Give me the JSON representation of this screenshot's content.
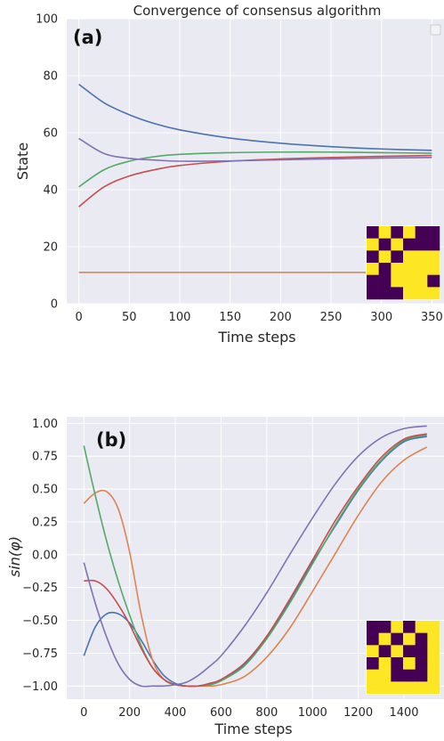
{
  "colors": {
    "background": "#eaeaf2",
    "grid": "#ffffff",
    "series": [
      "#4c72b0",
      "#dd8452",
      "#55a868",
      "#c44e52",
      "#8172b3"
    ],
    "matrix_on": "#fde725",
    "matrix_off": "#440154"
  },
  "chart_data": [
    {
      "type": "line",
      "title": "Convergence of consensus algorithm",
      "panel_label": "(a)",
      "xlabel": "Time steps",
      "ylabel": "State",
      "xlim": [
        -12,
        362
      ],
      "ylim": [
        0,
        100
      ],
      "xticks": [
        "0",
        "50",
        "100",
        "150",
        "200",
        "250",
        "300",
        "350"
      ],
      "yticks": [
        "0",
        "20",
        "40",
        "60",
        "80",
        "100"
      ],
      "grid": true,
      "legend": "top-right (empty)",
      "x": [
        0,
        25,
        50,
        75,
        100,
        150,
        200,
        250,
        300,
        350
      ],
      "series": [
        {
          "values": [
            77,
            70.5,
            66.3,
            63.2,
            61,
            58.1,
            56.3,
            55.1,
            54.3,
            53.8
          ]
        },
        {
          "values": [
            11,
            11,
            11,
            11,
            11,
            11,
            11,
            11,
            11,
            11
          ]
        },
        {
          "values": [
            41,
            47,
            50,
            51.6,
            52.4,
            53,
            53.2,
            53.2,
            53,
            52.8
          ]
        },
        {
          "values": [
            34,
            41,
            44.8,
            47,
            48.5,
            50,
            50.8,
            51.3,
            51.7,
            52
          ]
        },
        {
          "values": [
            58,
            52.7,
            51,
            50.4,
            50,
            50.1,
            50.5,
            50.8,
            51.1,
            51.3
          ]
        }
      ],
      "inset_matrix": [
        [
          0,
          1,
          0,
          1,
          0,
          0
        ],
        [
          1,
          0,
          1,
          0,
          0,
          0
        ],
        [
          0,
          1,
          0,
          1,
          1,
          1
        ],
        [
          1,
          0,
          1,
          1,
          1,
          1
        ],
        [
          0,
          0,
          1,
          1,
          1,
          0
        ],
        [
          0,
          0,
          0,
          1,
          1,
          1
        ]
      ]
    },
    {
      "type": "line",
      "panel_label": "(b)",
      "xlabel": "Time steps",
      "ylabel": "sin(φ)",
      "xlim": [
        -75,
        1575
      ],
      "ylim": [
        -1.1,
        1.05
      ],
      "xticks": [
        "0",
        "200",
        "400",
        "600",
        "800",
        "1000",
        "1200",
        "1400"
      ],
      "yticks": [
        "1.00",
        "0.75",
        "0.50",
        "0.25",
        "0.00",
        "−0.25",
        "−0.50",
        "−0.75",
        "−1.00"
      ],
      "grid": true,
      "x": [
        0,
        50,
        100,
        150,
        200,
        250,
        300,
        350,
        400,
        450,
        500,
        550,
        600,
        700,
        800,
        900,
        1000,
        1100,
        1200,
        1300,
        1400,
        1500
      ],
      "series": [
        {
          "values": [
            -0.77,
            -0.55,
            -0.45,
            -0.45,
            -0.52,
            -0.65,
            -0.8,
            -0.92,
            -0.98,
            -1.0,
            -1.0,
            -0.99,
            -0.96,
            -0.84,
            -0.63,
            -0.36,
            -0.06,
            0.22,
            0.49,
            0.71,
            0.86,
            0.9
          ]
        },
        {
          "values": [
            0.39,
            0.47,
            0.48,
            0.35,
            0.02,
            -0.45,
            -0.8,
            -0.95,
            -0.99,
            -1.0,
            -1.0,
            -1.0,
            -0.99,
            -0.93,
            -0.78,
            -0.56,
            -0.28,
            0.01,
            0.3,
            0.55,
            0.72,
            0.82
          ]
        },
        {
          "values": [
            0.83,
            0.45,
            0.1,
            -0.2,
            -0.46,
            -0.69,
            -0.86,
            -0.95,
            -0.99,
            -1.0,
            -1.0,
            -0.99,
            -0.96,
            -0.85,
            -0.64,
            -0.37,
            -0.07,
            0.23,
            0.5,
            0.72,
            0.87,
            0.91
          ]
        },
        {
          "values": [
            -0.2,
            -0.2,
            -0.26,
            -0.38,
            -0.53,
            -0.71,
            -0.86,
            -0.95,
            -0.99,
            -1.0,
            -1.0,
            -0.98,
            -0.95,
            -0.83,
            -0.62,
            -0.34,
            -0.04,
            0.26,
            0.52,
            0.74,
            0.88,
            0.92
          ]
        },
        {
          "values": [
            -0.06,
            -0.37,
            -0.63,
            -0.83,
            -0.95,
            -1.0,
            -1.0,
            -1.0,
            -0.99,
            -0.97,
            -0.92,
            -0.85,
            -0.77,
            -0.55,
            -0.29,
            -0.0,
            0.28,
            0.54,
            0.75,
            0.89,
            0.96,
            0.98
          ]
        }
      ],
      "inset_matrix": [
        [
          0,
          0,
          1,
          0,
          1,
          1
        ],
        [
          0,
          1,
          0,
          1,
          0,
          1
        ],
        [
          1,
          0,
          1,
          0,
          0,
          1
        ],
        [
          0,
          1,
          0,
          1,
          0,
          1
        ],
        [
          1,
          1,
          0,
          0,
          0,
          1
        ],
        [
          1,
          1,
          1,
          1,
          1,
          1
        ]
      ]
    }
  ]
}
